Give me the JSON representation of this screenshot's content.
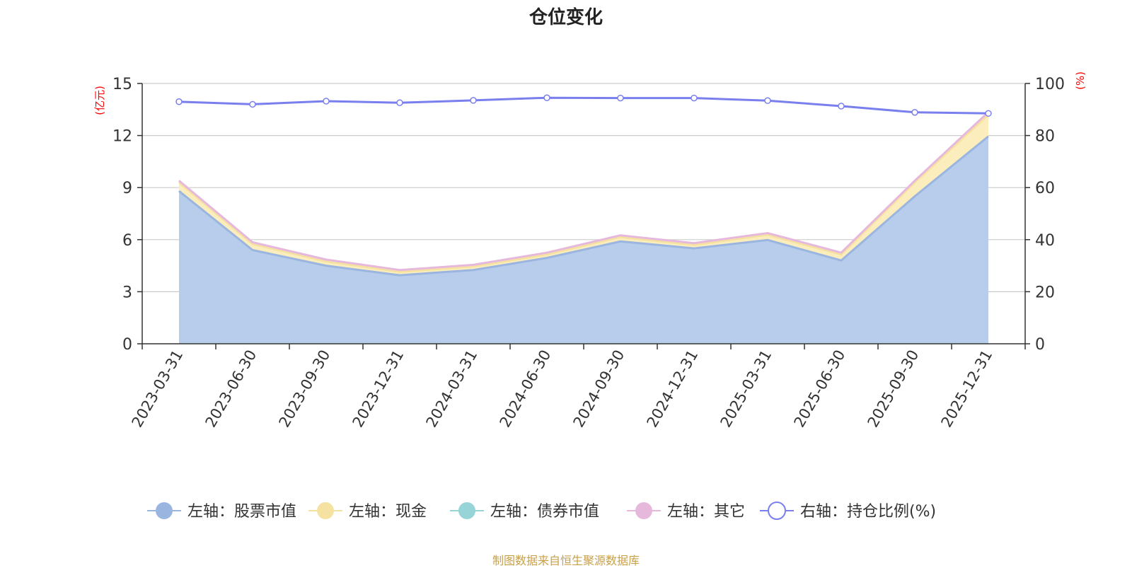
{
  "colors": {
    "stock": "#9ab5e0",
    "stock_fill": "#b8cceb",
    "cash": "#f5e2a0",
    "cash_fill": "#fbedbc",
    "bond": "#96d4d7",
    "other": "#e6b8dc",
    "ratio": "#7a7fee",
    "axis_name": "#ff0000",
    "source": "#c8a04a"
  },
  "chart_data": {
    "type": "area",
    "title": "仓位变化",
    "source": "制图数据来自恒生聚源数据库",
    "left_axis_name": "(亿元)",
    "right_axis_name": "(%)",
    "ylim_left": [
      0,
      15
    ],
    "yticks_left": [
      "0",
      "3",
      "6",
      "9",
      "12",
      "15"
    ],
    "ylim_right": [
      0,
      100
    ],
    "yticks_right": [
      "0",
      "20",
      "40",
      "60",
      "80",
      "100"
    ],
    "categories": [
      "2023-03-31",
      "2023-06-30",
      "2023-09-30",
      "2023-12-31",
      "2024-03-31",
      "2024-06-30",
      "2024-09-30",
      "2024-12-31",
      "2025-03-31",
      "2025-06-30",
      "2025-09-30",
      "2025-12-31"
    ],
    "grid": true,
    "legend_position": "bottom",
    "series": [
      {
        "key": "stock",
        "name": "左轴：股票市值",
        "axis": "left",
        "stacked": true,
        "values": [
          8.8,
          5.4,
          4.5,
          3.95,
          4.25,
          4.95,
          5.9,
          5.5,
          5.98,
          4.8,
          8.5,
          11.95
        ]
      },
      {
        "key": "cash",
        "name": "左轴：现金",
        "axis": "left",
        "stacked": true,
        "values": [
          0.5,
          0.35,
          0.25,
          0.2,
          0.2,
          0.2,
          0.25,
          0.2,
          0.3,
          0.35,
          0.8,
          1.25
        ]
      },
      {
        "key": "bond",
        "name": "左轴：债券市值",
        "axis": "left",
        "stacked": true,
        "values": [
          0,
          0,
          0,
          0,
          0,
          0,
          0,
          0,
          0,
          0,
          0,
          0
        ]
      },
      {
        "key": "other",
        "name": "左轴：其它",
        "axis": "left",
        "stacked": true,
        "values": [
          0.1,
          0.1,
          0.1,
          0.1,
          0.1,
          0.1,
          0.1,
          0.1,
          0.1,
          0.1,
          0.1,
          0.15
        ]
      },
      {
        "key": "ratio",
        "name": "右轴：持仓比例(%)",
        "axis": "right",
        "stacked": false,
        "values": [
          93.0,
          92.0,
          93.2,
          92.6,
          93.5,
          94.5,
          94.4,
          94.4,
          93.4,
          91.3,
          88.9,
          88.5
        ]
      }
    ]
  }
}
